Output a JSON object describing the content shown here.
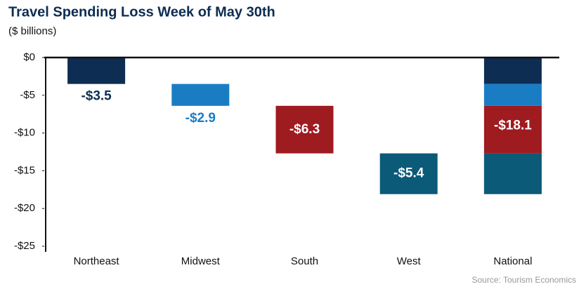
{
  "chart_data": {
    "type": "waterfall",
    "title": "Travel Spending Loss Week of May 30th",
    "subtitle": "($ billions)",
    "source": "Source: Tourism Economics",
    "categories": [
      "Northeast",
      "Midwest",
      "South",
      "West",
      "National"
    ],
    "values": [
      -3.5,
      -2.9,
      -6.3,
      -5.4,
      -18.1
    ],
    "value_labels": [
      "-$3.5",
      "-$2.9",
      "-$6.3",
      "-$5.4",
      "-$18.1"
    ],
    "colors": [
      "#0d2d52",
      "#1a7dc4",
      "#9e1b20",
      "#0b5a78"
    ],
    "last_is_total": true,
    "ylim": [
      -25,
      0
    ],
    "yticks": [
      {
        "value": 0,
        "label": "$0"
      },
      {
        "value": -5,
        "label": "-$5"
      },
      {
        "value": -10,
        "label": "-$10"
      },
      {
        "value": -15,
        "label": "-$15"
      },
      {
        "value": -20,
        "label": "-$20"
      },
      {
        "value": -25,
        "label": "-$25"
      }
    ]
  }
}
